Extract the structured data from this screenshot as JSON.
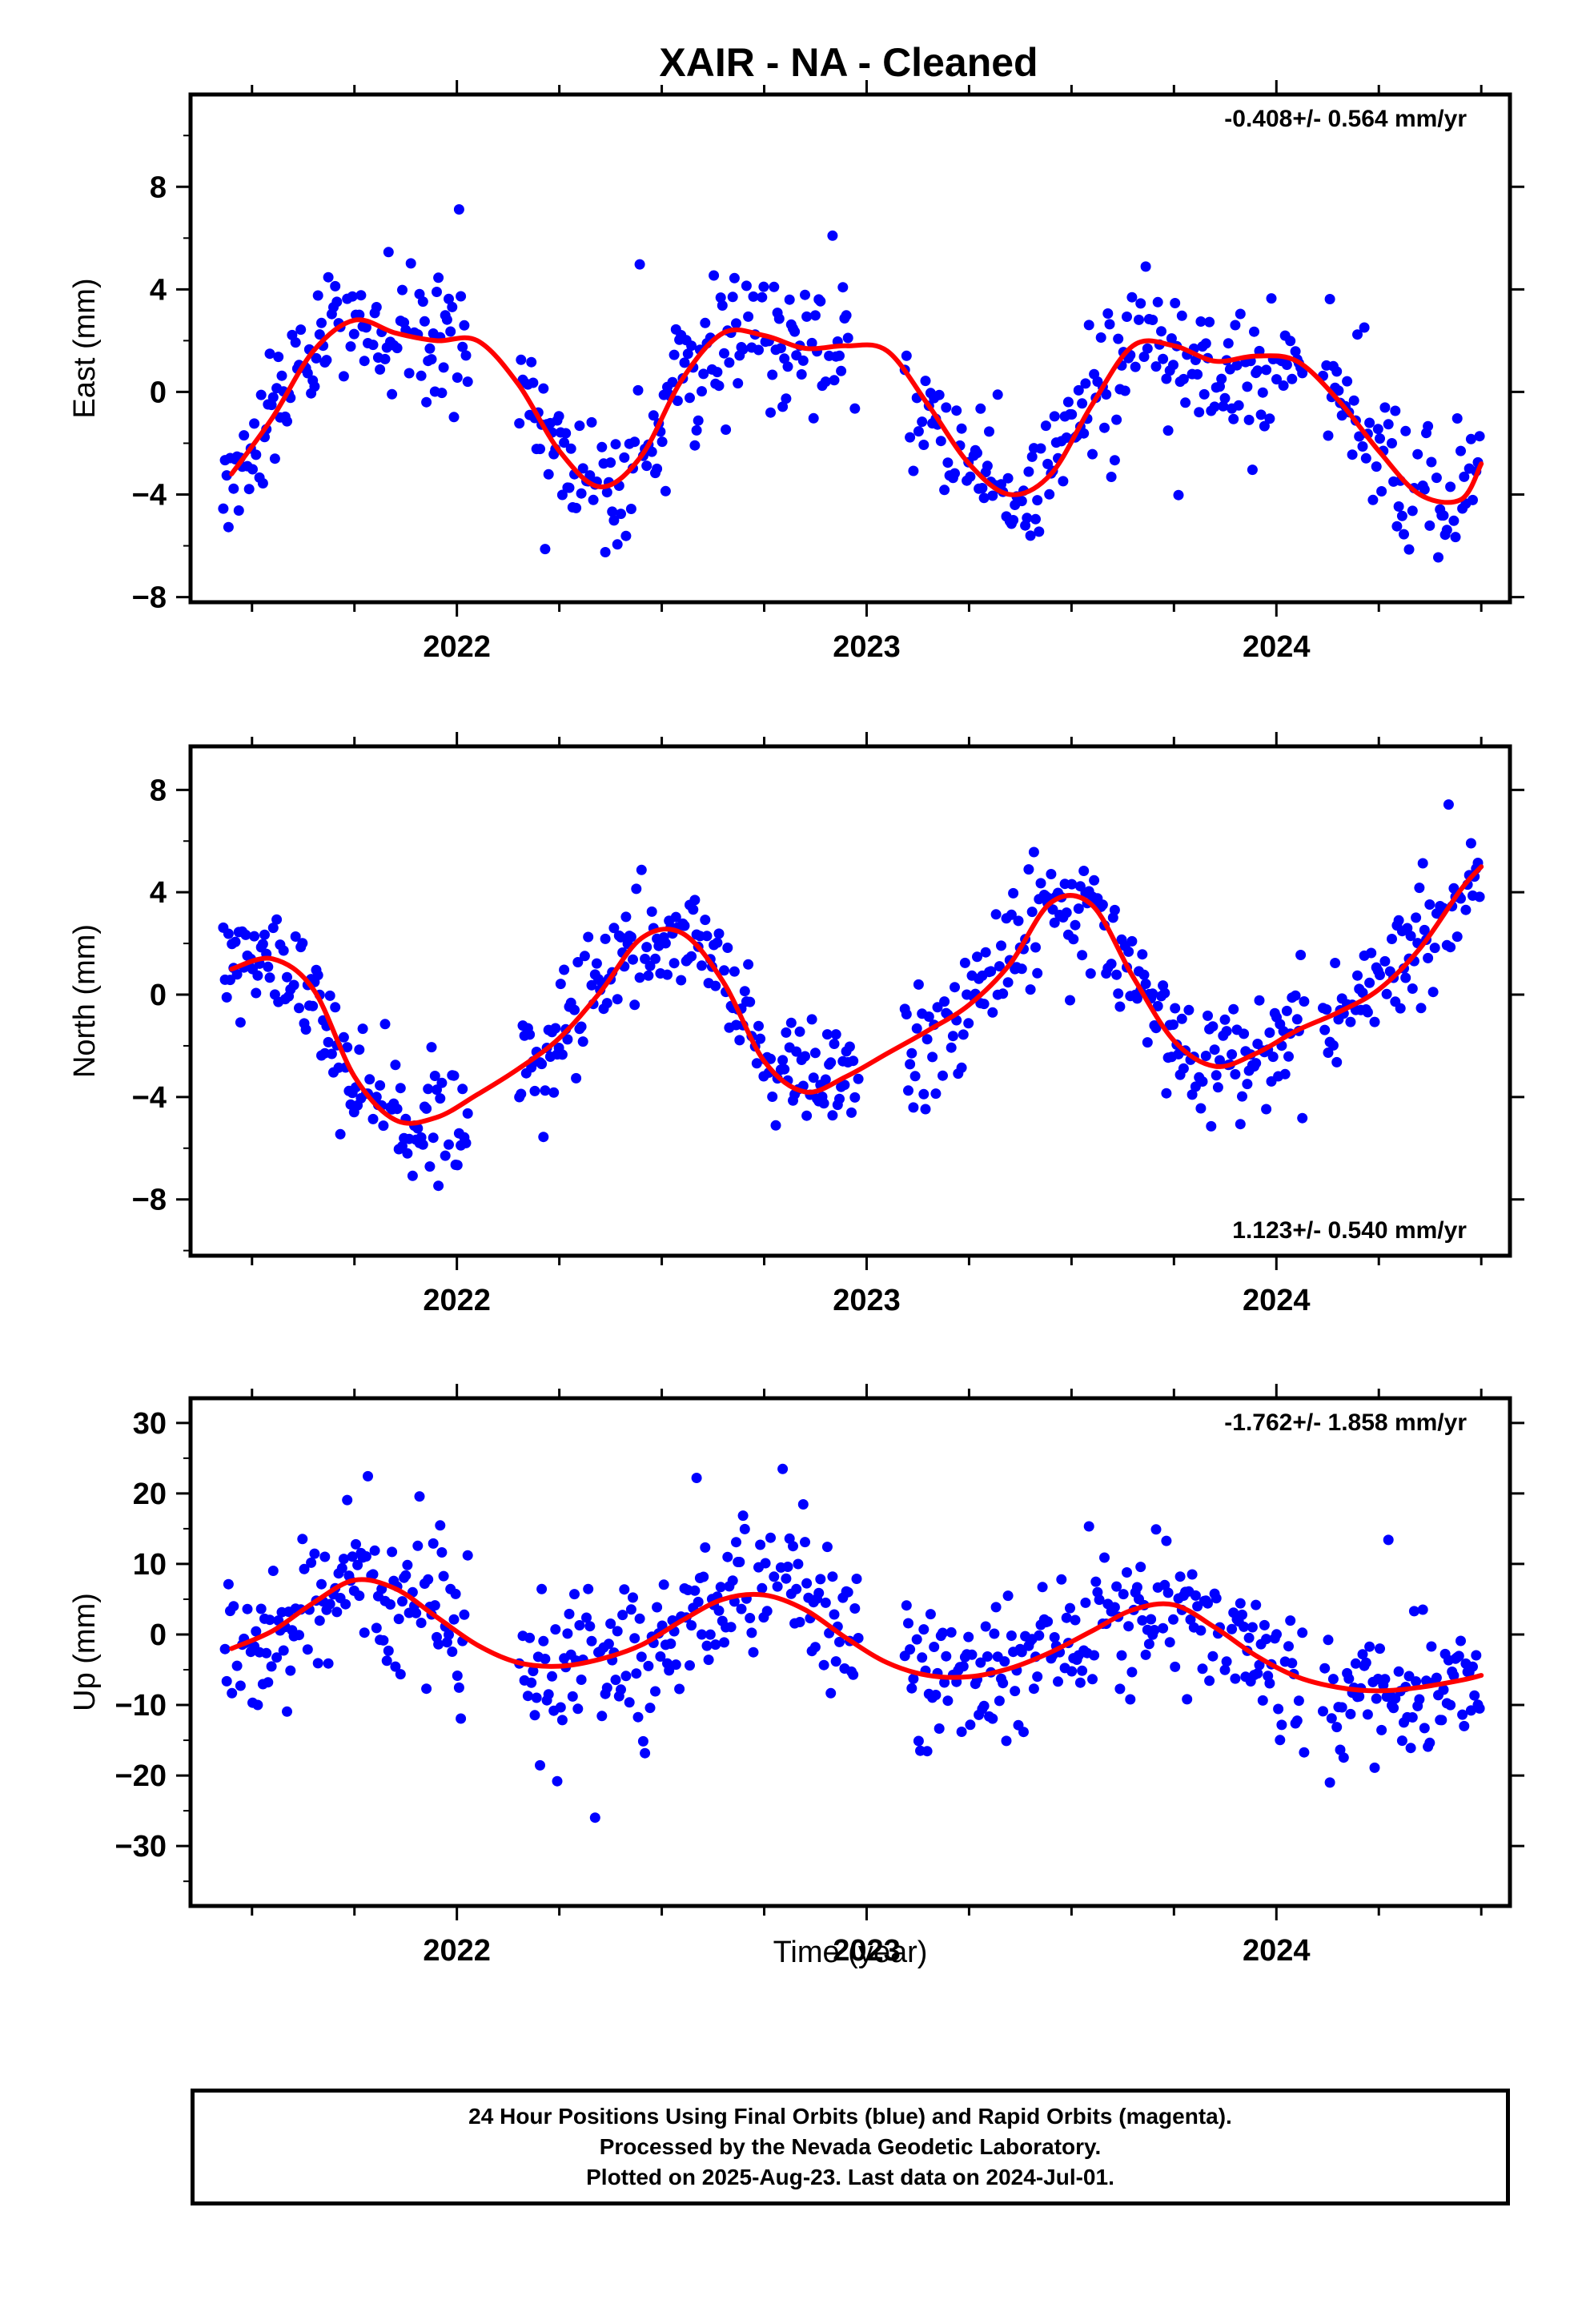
{
  "chart_data": {
    "type": "scatter",
    "title": "XAIR  - NA - Cleaned",
    "xlabel": "Time (year)",
    "xlim": [
      2021.35,
      2024.57
    ],
    "x_ticks": [
      "2022",
      "2023",
      "2024"
    ],
    "grid": false,
    "colors": {
      "points": "#0000ff",
      "fit": "#ff0000",
      "frame": "#000000"
    },
    "panels": [
      {
        "name": "east",
        "ylabel": "East (mm)",
        "ylim": [
          -8.2,
          11.6
        ],
        "y_ticks": [
          "8",
          "4",
          "0",
          "−4",
          "−8"
        ],
        "y_tick_values": [
          8,
          4,
          0,
          -4,
          -8
        ],
        "rate_label": "-0.408+/- 0.564 mm/yr",
        "rate_position": "top-right",
        "fit_curve": {
          "x": [
            2021.45,
            2021.55,
            2021.65,
            2021.75,
            2021.85,
            2021.95,
            2022.05,
            2022.15,
            2022.25,
            2022.35,
            2022.45,
            2022.55,
            2022.65,
            2022.75,
            2022.85,
            2022.95,
            2023.05,
            2023.15,
            2023.25,
            2023.35,
            2023.45,
            2023.55,
            2023.65,
            2023.75,
            2023.85,
            2023.95,
            2024.05,
            2024.15,
            2024.25,
            2024.35,
            2024.45,
            2024.5
          ],
          "y": [
            -3.2,
            -1.0,
            1.6,
            2.8,
            2.3,
            2.0,
            2.0,
            0.3,
            -2.3,
            -3.7,
            -2.5,
            0.5,
            2.3,
            2.2,
            1.7,
            1.8,
            1.6,
            -0.5,
            -2.8,
            -4.0,
            -3.2,
            -0.5,
            1.8,
            1.8,
            1.2,
            1.4,
            1.2,
            -0.3,
            -2.3,
            -4.0,
            -4.2,
            -2.8
          ]
        }
      },
      {
        "name": "north",
        "ylabel": "North (mm)",
        "ylim": [
          -10.2,
          9.7
        ],
        "y_ticks": [
          "8",
          "4",
          "0",
          "−4",
          "−8"
        ],
        "y_tick_values": [
          8,
          4,
          0,
          -4,
          -8
        ],
        "rate_label": "1.123+/- 0.540 mm/yr",
        "rate_position": "bottom-right",
        "fit_curve": {
          "x": [
            2021.45,
            2021.55,
            2021.65,
            2021.75,
            2021.85,
            2021.95,
            2022.05,
            2022.15,
            2022.25,
            2022.35,
            2022.45,
            2022.55,
            2022.65,
            2022.75,
            2022.85,
            2022.95,
            2023.05,
            2023.15,
            2023.25,
            2023.35,
            2023.45,
            2023.55,
            2023.65,
            2023.75,
            2023.85,
            2023.95,
            2024.05,
            2024.15,
            2024.25,
            2024.35,
            2024.45,
            2024.5
          ],
          "y": [
            1.0,
            1.4,
            0.2,
            -3.2,
            -4.9,
            -4.8,
            -3.9,
            -2.9,
            -1.7,
            0.1,
            2.2,
            2.4,
            0.5,
            -2.6,
            -3.8,
            -3.2,
            -2.3,
            -1.4,
            -0.4,
            1.2,
            3.6,
            3.5,
            0.7,
            -1.8,
            -2.8,
            -2.3,
            -1.4,
            -0.7,
            0.2,
            1.8,
            4.1,
            5.0
          ]
        }
      },
      {
        "name": "up",
        "ylabel": "Up (mm)",
        "ylim": [
          -38.5,
          33.5
        ],
        "y_ticks": [
          "30",
          "20",
          "10",
          "0",
          "−10",
          "−20",
          "−30"
        ],
        "y_tick_values": [
          30,
          20,
          10,
          0,
          -10,
          -20,
          -30
        ],
        "rate_label": "-1.762+/- 1.858 mm/yr",
        "rate_position": "top-right",
        "fit_curve": {
          "x": [
            2021.45,
            2021.55,
            2021.65,
            2021.75,
            2021.85,
            2021.95,
            2022.05,
            2022.15,
            2022.25,
            2022.35,
            2022.45,
            2022.55,
            2022.65,
            2022.75,
            2022.85,
            2022.95,
            2023.05,
            2023.15,
            2023.25,
            2023.35,
            2023.45,
            2023.55,
            2023.65,
            2023.75,
            2023.85,
            2023.95,
            2024.05,
            2024.15,
            2024.25,
            2024.35,
            2024.45,
            2024.5
          ],
          "y": [
            -2,
            0.5,
            4.5,
            7.7,
            6.5,
            2.5,
            -1.5,
            -4.0,
            -4.5,
            -3.5,
            -1.5,
            2.0,
            5.0,
            5.6,
            3.5,
            -0.5,
            -4.0,
            -5.8,
            -6.0,
            -4.8,
            -2.5,
            0.5,
            3.5,
            4.2,
            1.0,
            -3.0,
            -6.0,
            -7.5,
            -8.0,
            -7.5,
            -6.5,
            -5.8
          ]
        }
      }
    ],
    "scatter_generation_note": ""
  },
  "footer": {
    "line1": "24 Hour Positions Using Final Orbits (blue) and Rapid Orbits (magenta).",
    "line2": "Processed by the Nevada Geodetic Laboratory.",
    "line3": "Plotted on 2025-Aug-23. Last data on 2024-Jul-01."
  }
}
